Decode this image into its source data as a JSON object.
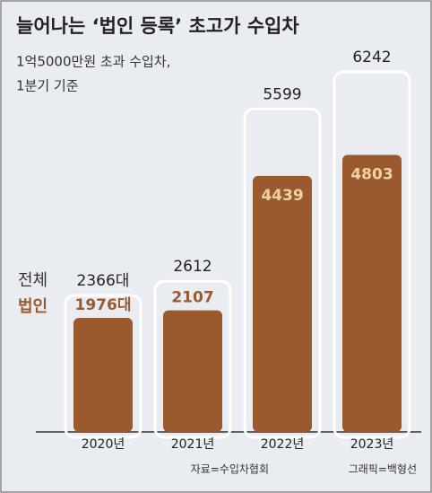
{
  "chart_data": {
    "type": "overlap_bar",
    "title": "늘어나는 ‘법인 등록’ 초고가 수입차",
    "subtitle": [
      "1억5000만원 초과 수입차,",
      "1분기 기준"
    ],
    "categories": [
      "2020년",
      "2021년",
      "2022년",
      "2023년"
    ],
    "series": [
      {
        "name": "전체",
        "color": "#ffffff",
        "values": [
          2366,
          2612,
          5599,
          6242
        ],
        "value_labels": [
          "2366대",
          "2612",
          "5599",
          "6242"
        ]
      },
      {
        "name": "법인",
        "color": "#9b5a2e",
        "values": [
          1976,
          2107,
          4439,
          4803
        ],
        "value_labels": [
          "1976대",
          "2107",
          "4439",
          "4803"
        ]
      }
    ],
    "source": "자료=수입차협회",
    "credit": "그래픽=백형선"
  }
}
